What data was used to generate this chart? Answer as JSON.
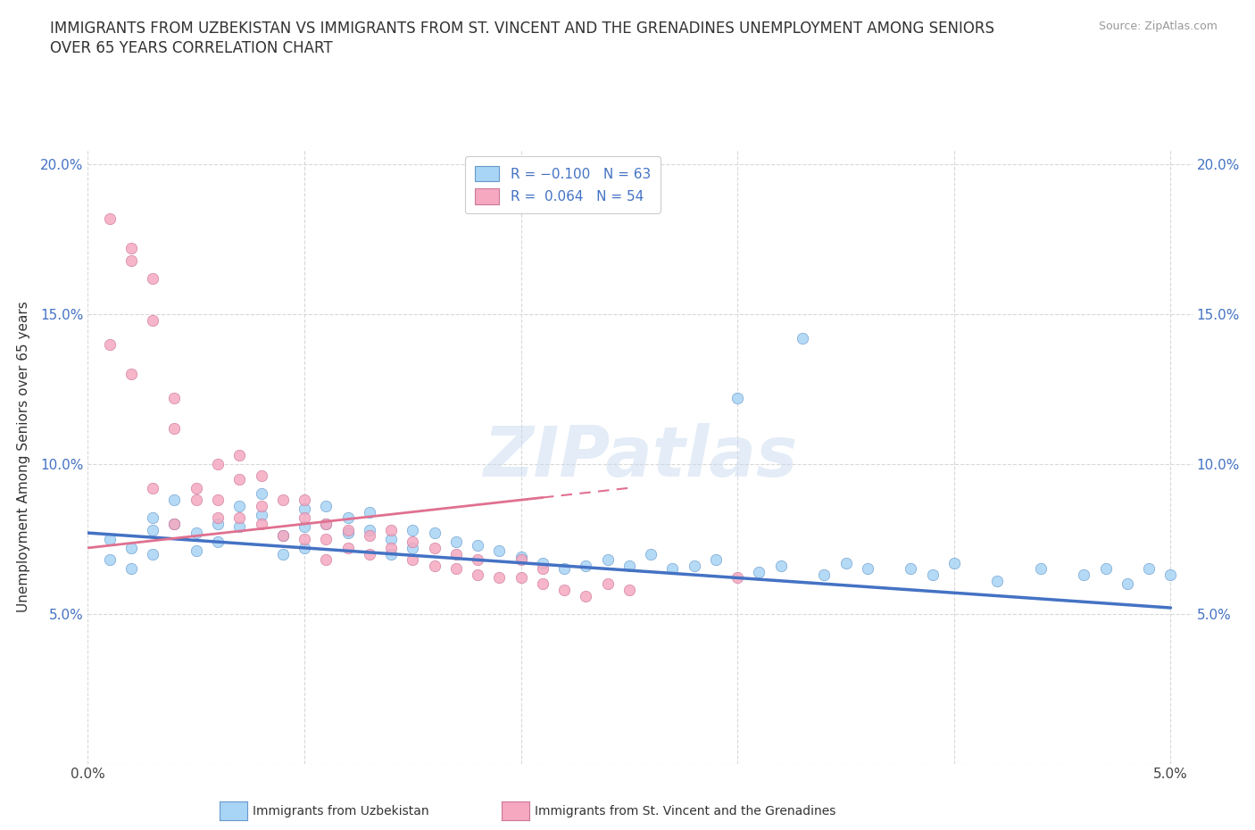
{
  "title_line1": "IMMIGRANTS FROM UZBEKISTAN VS IMMIGRANTS FROM ST. VINCENT AND THE GRENADINES UNEMPLOYMENT AMONG SENIORS",
  "title_line2": "OVER 65 YEARS CORRELATION CHART",
  "source_text": "Source: ZipAtlas.com",
  "ylabel": "Unemployment Among Seniors over 65 years",
  "xlim": [
    0.0,
    0.051
  ],
  "ylim": [
    0.0,
    0.205
  ],
  "xticks": [
    0.0,
    0.01,
    0.02,
    0.03,
    0.04,
    0.05
  ],
  "xticklabels": [
    "0.0%",
    "",
    "",
    "",
    "",
    "5.0%"
  ],
  "yticks": [
    0.0,
    0.05,
    0.1,
    0.15,
    0.2
  ],
  "yticklabels": [
    "",
    "5.0%",
    "10.0%",
    "15.0%",
    "20.0%"
  ],
  "color_uzbekistan": "#a8d4f5",
  "color_svgrenadines": "#f5a8c0",
  "edge_uzbekistan": "#6699cc",
  "edge_svgrenadines": "#cc7799",
  "trendline_color_uzbekistan": "#4472c4",
  "trendline_color_svgrenadines": "#e07090",
  "watermark": "ZIPatlas",
  "scatter_uzbekistan_x": [
    0.001,
    0.001,
    0.002,
    0.002,
    0.003,
    0.003,
    0.003,
    0.004,
    0.004,
    0.005,
    0.005,
    0.006,
    0.006,
    0.007,
    0.007,
    0.008,
    0.008,
    0.009,
    0.009,
    0.01,
    0.01,
    0.01,
    0.011,
    0.011,
    0.012,
    0.012,
    0.013,
    0.013,
    0.014,
    0.014,
    0.015,
    0.015,
    0.016,
    0.017,
    0.018,
    0.019,
    0.02,
    0.021,
    0.022,
    0.023,
    0.024,
    0.025,
    0.026,
    0.027,
    0.028,
    0.029,
    0.03,
    0.031,
    0.032,
    0.033,
    0.034,
    0.035,
    0.036,
    0.038,
    0.039,
    0.04,
    0.042,
    0.044,
    0.046,
    0.047,
    0.048,
    0.049,
    0.05
  ],
  "scatter_uzbekistan_y": [
    0.075,
    0.068,
    0.072,
    0.065,
    0.082,
    0.078,
    0.07,
    0.088,
    0.08,
    0.077,
    0.071,
    0.08,
    0.074,
    0.086,
    0.079,
    0.09,
    0.083,
    0.076,
    0.07,
    0.085,
    0.079,
    0.072,
    0.086,
    0.08,
    0.082,
    0.077,
    0.084,
    0.078,
    0.075,
    0.07,
    0.078,
    0.072,
    0.077,
    0.074,
    0.073,
    0.071,
    0.069,
    0.067,
    0.065,
    0.066,
    0.068,
    0.066,
    0.07,
    0.065,
    0.066,
    0.068,
    0.122,
    0.064,
    0.066,
    0.142,
    0.063,
    0.067,
    0.065,
    0.065,
    0.063,
    0.067,
    0.061,
    0.065,
    0.063,
    0.065,
    0.06,
    0.065,
    0.063
  ],
  "scatter_svgrenadines_x": [
    0.001,
    0.001,
    0.002,
    0.002,
    0.002,
    0.003,
    0.003,
    0.003,
    0.004,
    0.004,
    0.004,
    0.005,
    0.005,
    0.006,
    0.006,
    0.006,
    0.007,
    0.007,
    0.007,
    0.008,
    0.008,
    0.008,
    0.009,
    0.009,
    0.01,
    0.01,
    0.01,
    0.011,
    0.011,
    0.011,
    0.012,
    0.012,
    0.013,
    0.013,
    0.014,
    0.014,
    0.015,
    0.015,
    0.016,
    0.016,
    0.017,
    0.017,
    0.018,
    0.018,
    0.019,
    0.02,
    0.02,
    0.021,
    0.021,
    0.022,
    0.023,
    0.024,
    0.025,
    0.03
  ],
  "scatter_svgrenadines_y": [
    0.182,
    0.14,
    0.172,
    0.13,
    0.168,
    0.162,
    0.148,
    0.092,
    0.122,
    0.112,
    0.08,
    0.092,
    0.088,
    0.1,
    0.088,
    0.082,
    0.103,
    0.095,
    0.082,
    0.096,
    0.086,
    0.08,
    0.088,
    0.076,
    0.088,
    0.082,
    0.075,
    0.08,
    0.075,
    0.068,
    0.078,
    0.072,
    0.076,
    0.07,
    0.078,
    0.072,
    0.074,
    0.068,
    0.072,
    0.066,
    0.07,
    0.065,
    0.068,
    0.063,
    0.062,
    0.068,
    0.062,
    0.065,
    0.06,
    0.058,
    0.056,
    0.06,
    0.058,
    0.062
  ],
  "trend_uz_x0": 0.0,
  "trend_uz_x1": 0.05,
  "trend_uz_y0": 0.077,
  "trend_uz_y1": 0.052,
  "trend_sv_x0": 0.0,
  "trend_sv_x1": 0.025,
  "trend_sv_solid_x1": 0.021,
  "trend_sv_y0": 0.072,
  "trend_sv_y1": 0.092
}
